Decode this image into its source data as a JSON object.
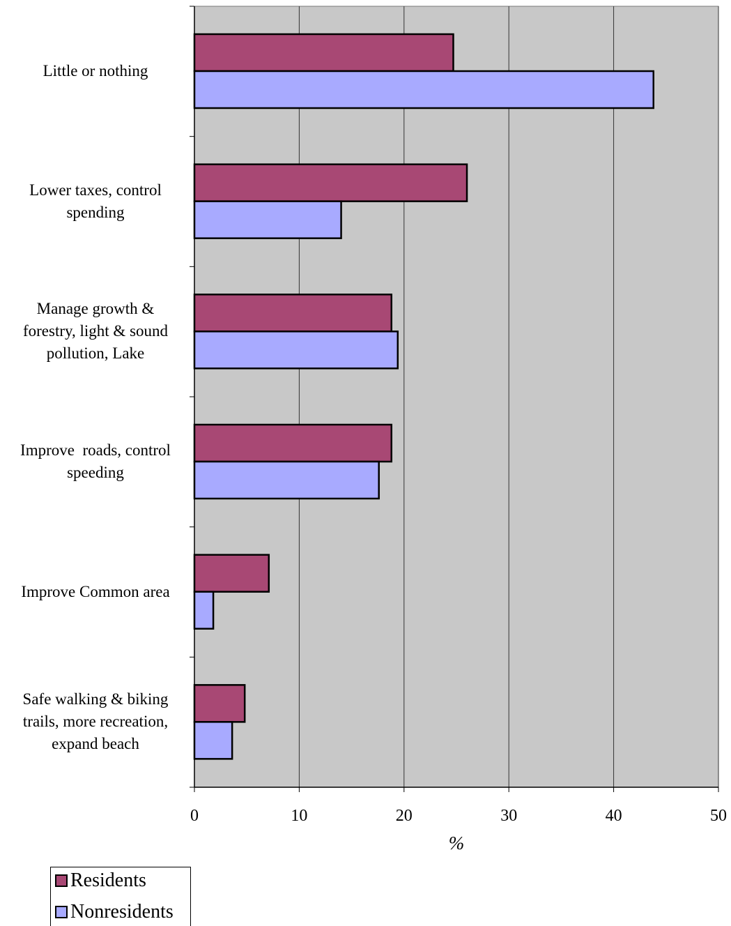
{
  "chart_data": {
    "type": "bar",
    "orientation": "horizontal",
    "categories": [
      "Little or nothing",
      "Lower taxes, control spending",
      "Manage growth & forestry, light & sound pollution, Lake",
      "Improve  roads, control speeding",
      "Improve Common area",
      "Safe walking & biking trails, more recreation, expand beach"
    ],
    "category_lines": [
      [
        "Little or nothing"
      ],
      [
        "Lower taxes, control",
        "spending"
      ],
      [
        "Manage growth &",
        "forestry, light & sound",
        "pollution, Lake"
      ],
      [
        "Improve  roads, control",
        "speeding"
      ],
      [
        "Improve Common area"
      ],
      [
        "Safe walking & biking",
        "trails, more recreation,",
        "expand beach"
      ]
    ],
    "series": [
      {
        "name": "Residents",
        "color": "#a84874",
        "values": [
          24.7,
          26.0,
          18.8,
          18.8,
          7.1,
          4.8
        ]
      },
      {
        "name": "Nonresidents",
        "color": "#a8aaff",
        "values": [
          43.8,
          14.0,
          19.4,
          17.6,
          1.8,
          3.6
        ]
      }
    ],
    "xlabel": "%",
    "xlim": [
      0,
      50
    ],
    "xticks": [
      "0",
      "10",
      "20",
      "30",
      "40",
      "50"
    ],
    "grid": true,
    "plot_background": "#c8c8c8",
    "legend_position": "bottom-left"
  }
}
